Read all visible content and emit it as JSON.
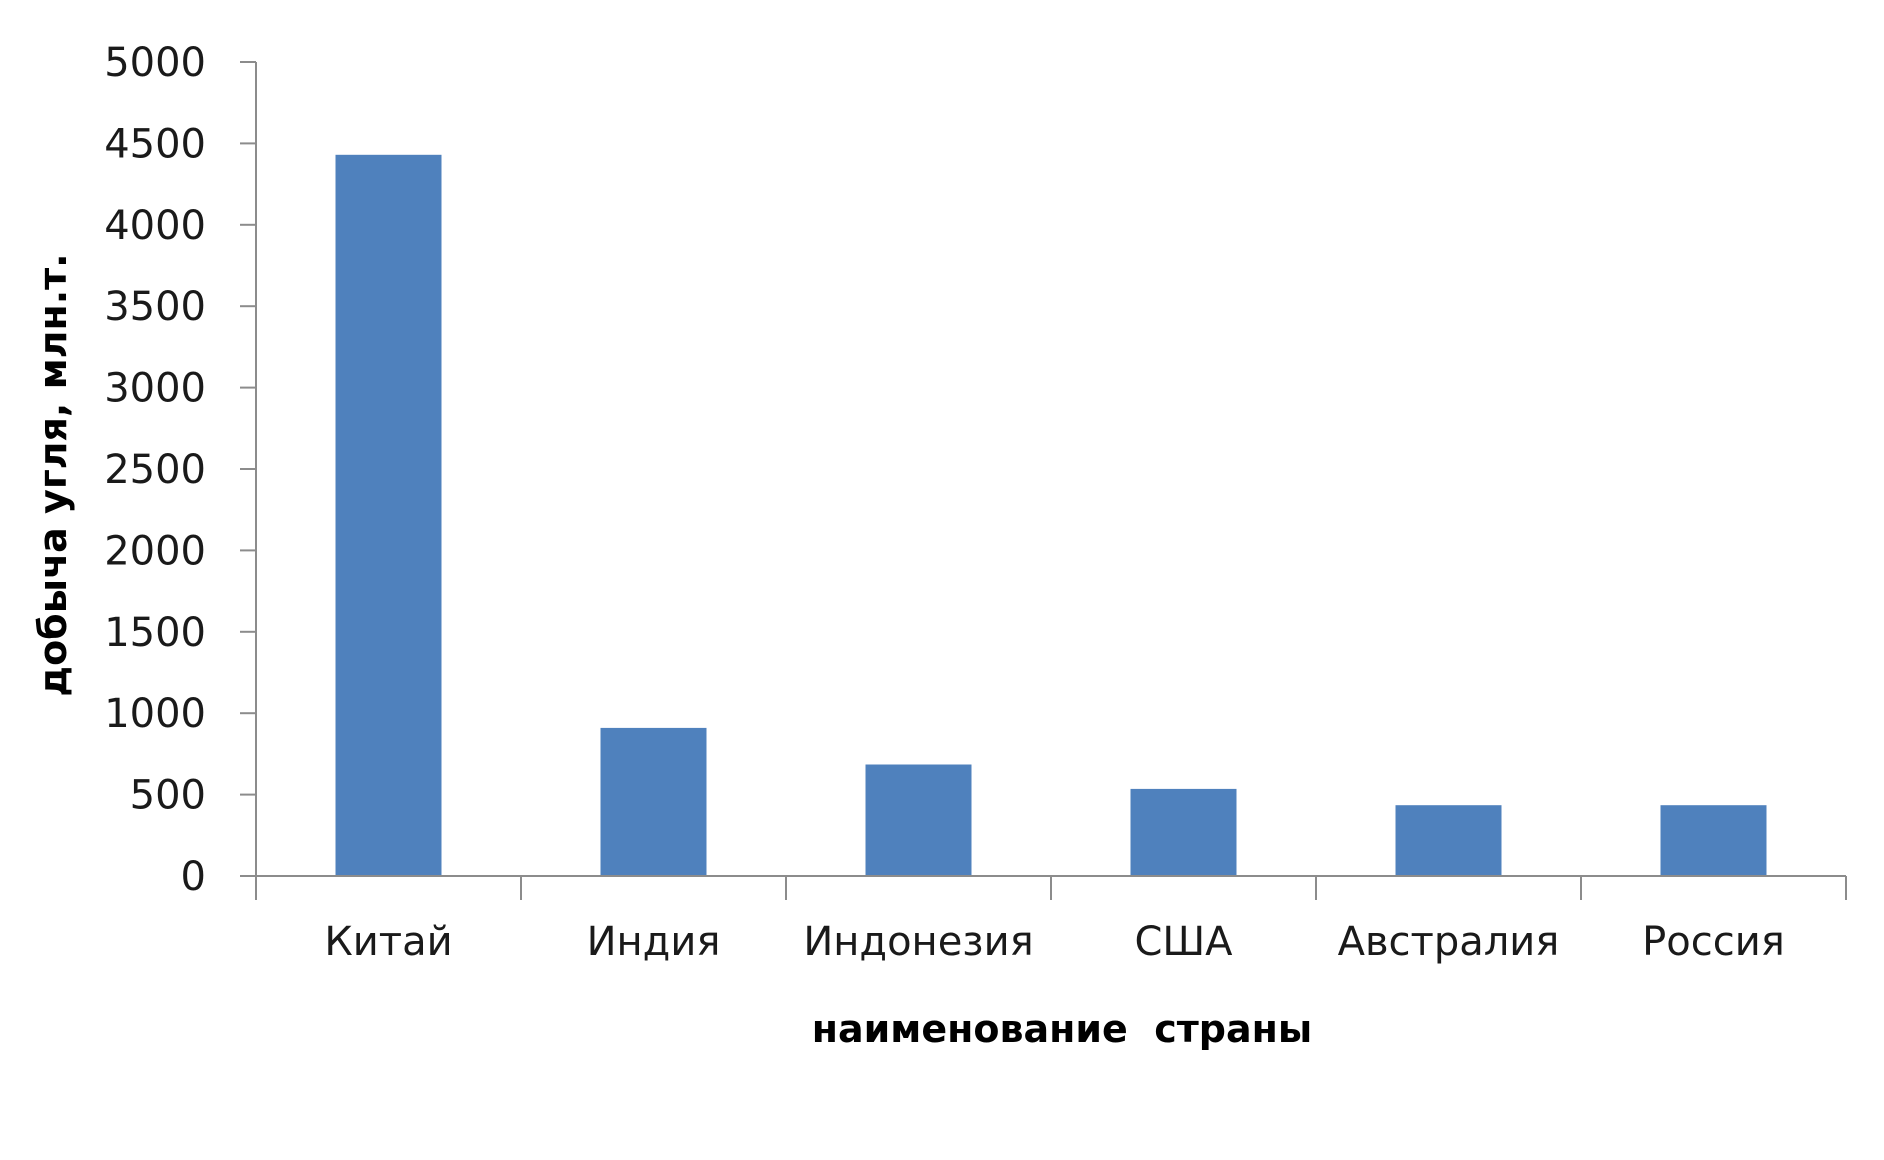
{
  "chart_data": {
    "type": "bar",
    "categories": [
      "Китай",
      "Индия",
      "Индонезия",
      "США",
      "Австралия",
      "Россия"
    ],
    "values": [
      4430,
      910,
      685,
      535,
      435,
      435
    ],
    "xlabel": "наименование  страны",
    "ylabel": "добыча угля, млн.т.",
    "ylim": [
      0,
      5000
    ],
    "yticks": [
      "0",
      "500",
      "1000",
      "1500",
      "2000",
      "2500",
      "3000",
      "3500",
      "4000",
      "4500",
      "5000"
    ],
    "grid": false,
    "legend": "none",
    "colors": {
      "bar": "#4f81bd",
      "axis": "#8c8c8c",
      "text": "#1a1a1a"
    }
  }
}
